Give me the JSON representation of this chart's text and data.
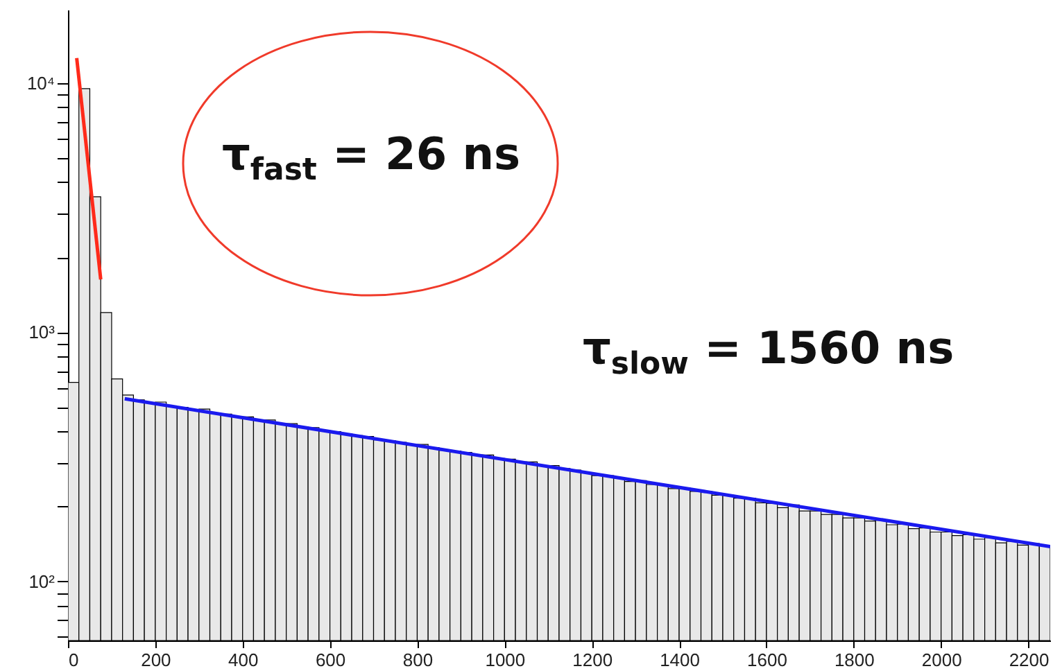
{
  "chart_data": {
    "type": "histogram",
    "log": true,
    "color": "#e8e8e8",
    "bins": [
      0,
      25,
      50,
      75,
      100,
      125,
      150,
      175,
      200,
      225,
      250,
      275,
      300,
      325,
      350,
      375,
      400,
      425,
      450,
      475,
      500,
      525,
      550,
      575,
      600,
      625,
      650,
      675,
      700,
      725,
      750,
      775,
      800,
      825,
      850,
      875,
      900,
      925,
      950,
      975,
      1000,
      1025,
      1050,
      1075,
      1100,
      1125,
      1150,
      1175,
      1200,
      1225,
      1250,
      1275,
      1300,
      1325,
      1350,
      1375,
      1400,
      1425,
      1450,
      1475,
      1500,
      1525,
      1550,
      1575,
      1600,
      1625,
      1650,
      1675,
      1700,
      1725,
      1750,
      1775,
      1800,
      1825,
      1850,
      1875,
      1900,
      1925,
      1950,
      1975,
      2000,
      2025,
      2050,
      2075,
      2100,
      2125,
      2150,
      2175,
      2200,
      2225,
      2250
    ],
    "values": [
      630,
      9500,
      3500,
      1200,
      650,
      560,
      536,
      520,
      525,
      505,
      500,
      490,
      492,
      475,
      470,
      460,
      458,
      445,
      445,
      430,
      430,
      418,
      415,
      405,
      400,
      392,
      385,
      382,
      370,
      368,
      362,
      352,
      355,
      345,
      336,
      334,
      330,
      322,
      322,
      312,
      310,
      302,
      302,
      292,
      292,
      284,
      280,
      274,
      266,
      266,
      260,
      252,
      254,
      245,
      245,
      236,
      238,
      230,
      230,
      222,
      222,
      216,
      216,
      207,
      206,
      198,
      203,
      192,
      192,
      186,
      186,
      180,
      180,
      175,
      176,
      169,
      170,
      163,
      164,
      158,
      158,
      153,
      154,
      148,
      150,
      143,
      145,
      140,
      142,
      139
    ],
    "series": [
      {
        "type": "line",
        "color": "#ff2a1a",
        "x": [
          20,
          75
        ],
        "values": [
          12600,
          1630
        ]
      },
      {
        "type": "line",
        "color": "#1a1aee",
        "x": [
          130,
          2250
        ],
        "values": [
          541,
          138
        ]
      }
    ],
    "xlim": [
      0,
      2250
    ],
    "xticks": [
      0,
      200,
      400,
      600,
      800,
      1000,
      1200,
      1400,
      1600,
      1800,
      2000,
      2200
    ],
    "ylim": [
      58,
      19700
    ],
    "yticks": [
      {
        "value": 60,
        "label": null
      },
      {
        "value": 70,
        "label": null
      },
      {
        "value": 80,
        "label": null
      },
      {
        "value": 90,
        "label": null
      },
      {
        "value": 100,
        "label": "10²"
      },
      {
        "value": 200,
        "label": null
      },
      {
        "value": 300,
        "label": null
      },
      {
        "value": 400,
        "label": null
      },
      {
        "value": 500,
        "label": null
      },
      {
        "value": 600,
        "label": null
      },
      {
        "value": 700,
        "label": null
      },
      {
        "value": 800,
        "label": null
      },
      {
        "value": 900,
        "label": null
      },
      {
        "value": 1000,
        "label": "10³"
      },
      {
        "value": 2000,
        "label": null
      },
      {
        "value": 3000,
        "label": null
      },
      {
        "value": 4000,
        "label": null
      },
      {
        "value": 5000,
        "label": null
      },
      {
        "value": 6000,
        "label": null
      },
      {
        "value": 7000,
        "label": null
      },
      {
        "value": 8000,
        "label": null
      },
      {
        "value": 9000,
        "label": null
      },
      {
        "value": 10000,
        "label": "10⁴"
      }
    ],
    "annotations": [
      "τ$_{fast}$ = 26 ns",
      "τ$_{slow}$ = 1560 ns"
    ]
  }
}
